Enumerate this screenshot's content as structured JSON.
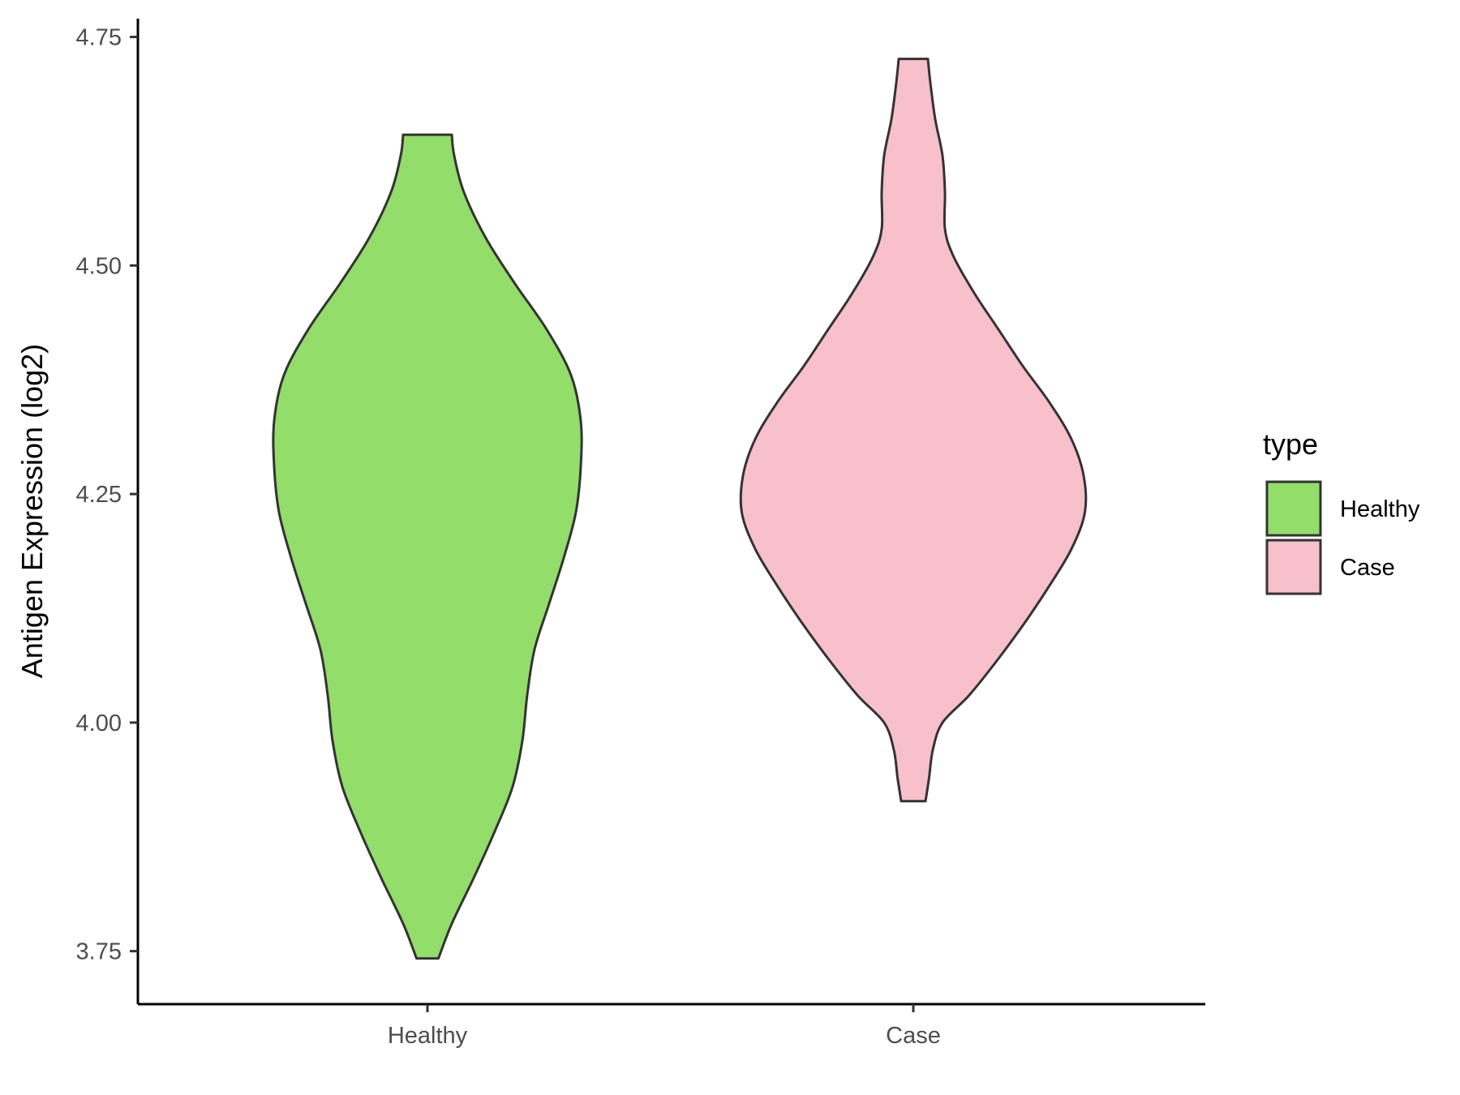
{
  "chart_data": {
    "type": "violin",
    "title": "",
    "xlabel": "",
    "ylabel": "Antigen Expression (log2)",
    "categories": [
      "Healthy",
      "Case"
    ],
    "ylim": [
      3.692,
      4.77
    ],
    "yticks": [
      3.75,
      4.0,
      4.25,
      4.5,
      4.75
    ],
    "ytick_labels": [
      "3.75",
      "4.00",
      "4.25",
      "4.50",
      "4.75"
    ],
    "grid": false,
    "legend": {
      "title": "type",
      "placement": "right",
      "entries": [
        {
          "name": "Healthy",
          "color": "#93DD6A"
        },
        {
          "name": "Case",
          "color": "#F8C0CB"
        }
      ]
    },
    "series": [
      {
        "name": "Healthy",
        "color": "#93DD6A",
        "min": 3.742,
        "max": 4.643,
        "density_profile": [
          {
            "y": 3.742,
            "w": 0.09
          },
          {
            "y": 3.78,
            "w": 0.2
          },
          {
            "y": 3.83,
            "w": 0.38
          },
          {
            "y": 3.88,
            "w": 0.55
          },
          {
            "y": 3.93,
            "w": 0.7
          },
          {
            "y": 3.98,
            "w": 0.78
          },
          {
            "y": 4.03,
            "w": 0.82
          },
          {
            "y": 4.08,
            "w": 0.88
          },
          {
            "y": 4.13,
            "w": 1.0
          },
          {
            "y": 4.18,
            "w": 1.12
          },
          {
            "y": 4.23,
            "w": 1.22
          },
          {
            "y": 4.28,
            "w": 1.26
          },
          {
            "y": 4.33,
            "w": 1.26
          },
          {
            "y": 4.38,
            "w": 1.18
          },
          {
            "y": 4.43,
            "w": 0.98
          },
          {
            "y": 4.48,
            "w": 0.72
          },
          {
            "y": 4.53,
            "w": 0.48
          },
          {
            "y": 4.58,
            "w": 0.3
          },
          {
            "y": 4.62,
            "w": 0.22
          },
          {
            "y": 4.643,
            "w": 0.2
          }
        ]
      },
      {
        "name": "Case",
        "color": "#F8C0CB",
        "min": 3.914,
        "max": 4.726,
        "density_profile": [
          {
            "y": 3.914,
            "w": 0.1
          },
          {
            "y": 3.94,
            "w": 0.13
          },
          {
            "y": 3.97,
            "w": 0.16
          },
          {
            "y": 4.0,
            "w": 0.24
          },
          {
            "y": 4.03,
            "w": 0.46
          },
          {
            "y": 4.07,
            "w": 0.7
          },
          {
            "y": 4.11,
            "w": 0.92
          },
          {
            "y": 4.15,
            "w": 1.12
          },
          {
            "y": 4.19,
            "w": 1.3
          },
          {
            "y": 4.23,
            "w": 1.41
          },
          {
            "y": 4.27,
            "w": 1.4
          },
          {
            "y": 4.31,
            "w": 1.3
          },
          {
            "y": 4.35,
            "w": 1.12
          },
          {
            "y": 4.39,
            "w": 0.9
          },
          {
            "y": 4.43,
            "w": 0.7
          },
          {
            "y": 4.47,
            "w": 0.5
          },
          {
            "y": 4.51,
            "w": 0.33
          },
          {
            "y": 4.54,
            "w": 0.26
          },
          {
            "y": 4.58,
            "w": 0.26
          },
          {
            "y": 4.62,
            "w": 0.24
          },
          {
            "y": 4.66,
            "w": 0.18
          },
          {
            "y": 4.7,
            "w": 0.14
          },
          {
            "y": 4.726,
            "w": 0.12
          }
        ]
      }
    ]
  }
}
